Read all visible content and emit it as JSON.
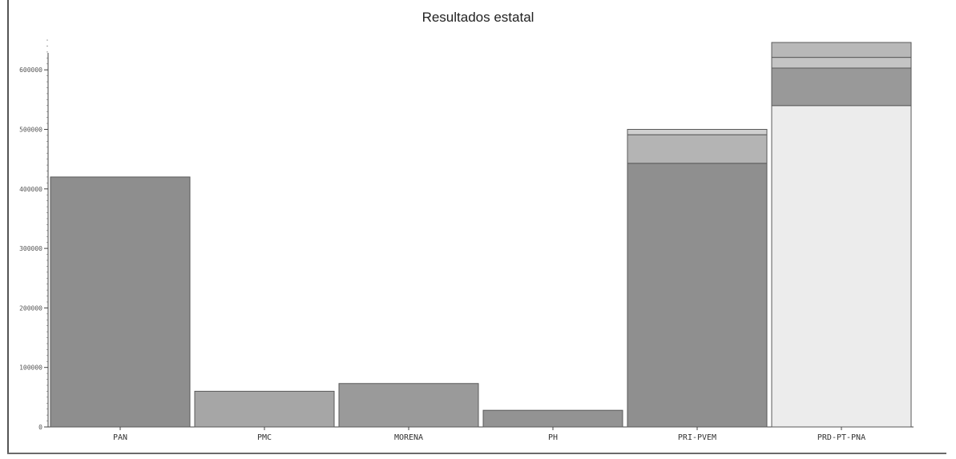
{
  "chart_data": {
    "type": "bar",
    "title": "Resultados estatal",
    "xlabel": "",
    "ylabel": "",
    "ylim": [
      0,
      650000
    ],
    "yticks": [
      0,
      100000,
      200000,
      300000,
      400000,
      500000,
      600000
    ],
    "ytick_labels": [
      "0",
      "100000",
      "200000",
      "300000",
      "400000",
      "500000",
      "600000"
    ],
    "categories": [
      "PAN",
      "PMC",
      "MORENA",
      "PH",
      "PRI-PVEM",
      "PRD-PT-PNA"
    ],
    "stacked": true,
    "bars": [
      {
        "category": "PAN",
        "segments": [
          {
            "value": 420000,
            "color": "#8e8e8e"
          }
        ]
      },
      {
        "category": "PMC",
        "segments": [
          {
            "value": 60000,
            "color": "#a6a6a6"
          }
        ]
      },
      {
        "category": "MORENA",
        "segments": [
          {
            "value": 73000,
            "color": "#9a9a9a"
          }
        ]
      },
      {
        "category": "PH",
        "segments": [
          {
            "value": 28000,
            "color": "#939393"
          }
        ]
      },
      {
        "category": "PRI-PVEM",
        "segments": [
          {
            "value": 443000,
            "color": "#8f8f8f"
          },
          {
            "value": 48000,
            "color": "#b4b4b4"
          },
          {
            "value": 9000,
            "color": "#cfcfcf"
          }
        ]
      },
      {
        "category": "PRD-PT-PNA",
        "segments": [
          {
            "value": 540000,
            "color": "#ececec"
          },
          {
            "value": 63000,
            "color": "#999999"
          },
          {
            "value": 18000,
            "color": "#c4c4c4"
          },
          {
            "value": 25000,
            "color": "#b8b8b8"
          }
        ]
      }
    ]
  }
}
